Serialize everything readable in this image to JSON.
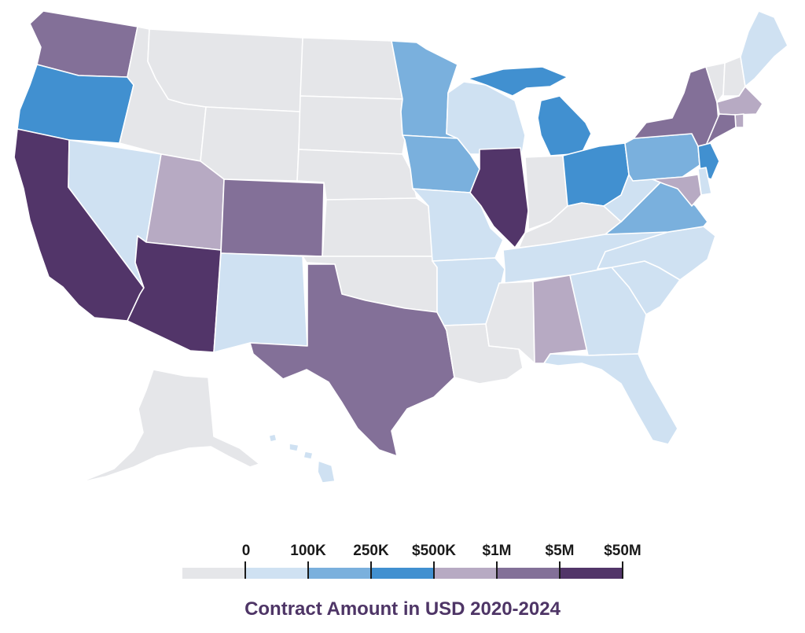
{
  "colors": {
    "c0": "#e5e6e9",
    "c1": "#cfe1f2",
    "c2": "#7ab0dd",
    "c3": "#4190d0",
    "c4": "#b7aac3",
    "c5": "#837098",
    "c6": "#523569"
  },
  "legend": {
    "title": "Contract Amount in USD 2020-2024",
    "ticks": [
      "0",
      "100K",
      "250K",
      "$500K",
      "$1M",
      "$5M",
      "$50M"
    ],
    "bin_colors": [
      "c0",
      "c1",
      "c2",
      "c3",
      "c4",
      "c5",
      "c6"
    ]
  },
  "states": [
    {
      "id": "WA",
      "tier": "c5"
    },
    {
      "id": "OR",
      "tier": "c3"
    },
    {
      "id": "CA",
      "tier": "c6"
    },
    {
      "id": "NV",
      "tier": "c1"
    },
    {
      "id": "ID",
      "tier": "c0"
    },
    {
      "id": "MT",
      "tier": "c0"
    },
    {
      "id": "WY",
      "tier": "c0"
    },
    {
      "id": "UT",
      "tier": "c4"
    },
    {
      "id": "AZ",
      "tier": "c6"
    },
    {
      "id": "CO",
      "tier": "c5"
    },
    {
      "id": "NM",
      "tier": "c1"
    },
    {
      "id": "ND",
      "tier": "c0"
    },
    {
      "id": "SD",
      "tier": "c0"
    },
    {
      "id": "NE",
      "tier": "c0"
    },
    {
      "id": "KS",
      "tier": "c0"
    },
    {
      "id": "OK",
      "tier": "c0"
    },
    {
      "id": "TX",
      "tier": "c5"
    },
    {
      "id": "MN",
      "tier": "c2"
    },
    {
      "id": "IA",
      "tier": "c2"
    },
    {
      "id": "MO",
      "tier": "c1"
    },
    {
      "id": "AR",
      "tier": "c1"
    },
    {
      "id": "LA",
      "tier": "c0"
    },
    {
      "id": "WI",
      "tier": "c1"
    },
    {
      "id": "IL",
      "tier": "c6"
    },
    {
      "id": "MI",
      "tier": "c3"
    },
    {
      "id": "IN",
      "tier": "c0"
    },
    {
      "id": "OH",
      "tier": "c3"
    },
    {
      "id": "KY",
      "tier": "c0"
    },
    {
      "id": "TN",
      "tier": "c1"
    },
    {
      "id": "MS",
      "tier": "c0"
    },
    {
      "id": "AL",
      "tier": "c4"
    },
    {
      "id": "GA",
      "tier": "c1"
    },
    {
      "id": "FL",
      "tier": "c1"
    },
    {
      "id": "SC",
      "tier": "c1"
    },
    {
      "id": "NC",
      "tier": "c1"
    },
    {
      "id": "VA",
      "tier": "c2"
    },
    {
      "id": "WV",
      "tier": "c1"
    },
    {
      "id": "PA",
      "tier": "c2"
    },
    {
      "id": "NY",
      "tier": "c5"
    },
    {
      "id": "VT",
      "tier": "c0"
    },
    {
      "id": "NH",
      "tier": "c0"
    },
    {
      "id": "ME",
      "tier": "c1"
    },
    {
      "id": "MA",
      "tier": "c4"
    },
    {
      "id": "RI",
      "tier": "c4"
    },
    {
      "id": "CT",
      "tier": "c5"
    },
    {
      "id": "NJ",
      "tier": "c3"
    },
    {
      "id": "DE",
      "tier": "c1"
    },
    {
      "id": "MD",
      "tier": "c4"
    },
    {
      "id": "AK",
      "tier": "c0"
    },
    {
      "id": "HI",
      "tier": "c1"
    }
  ]
}
